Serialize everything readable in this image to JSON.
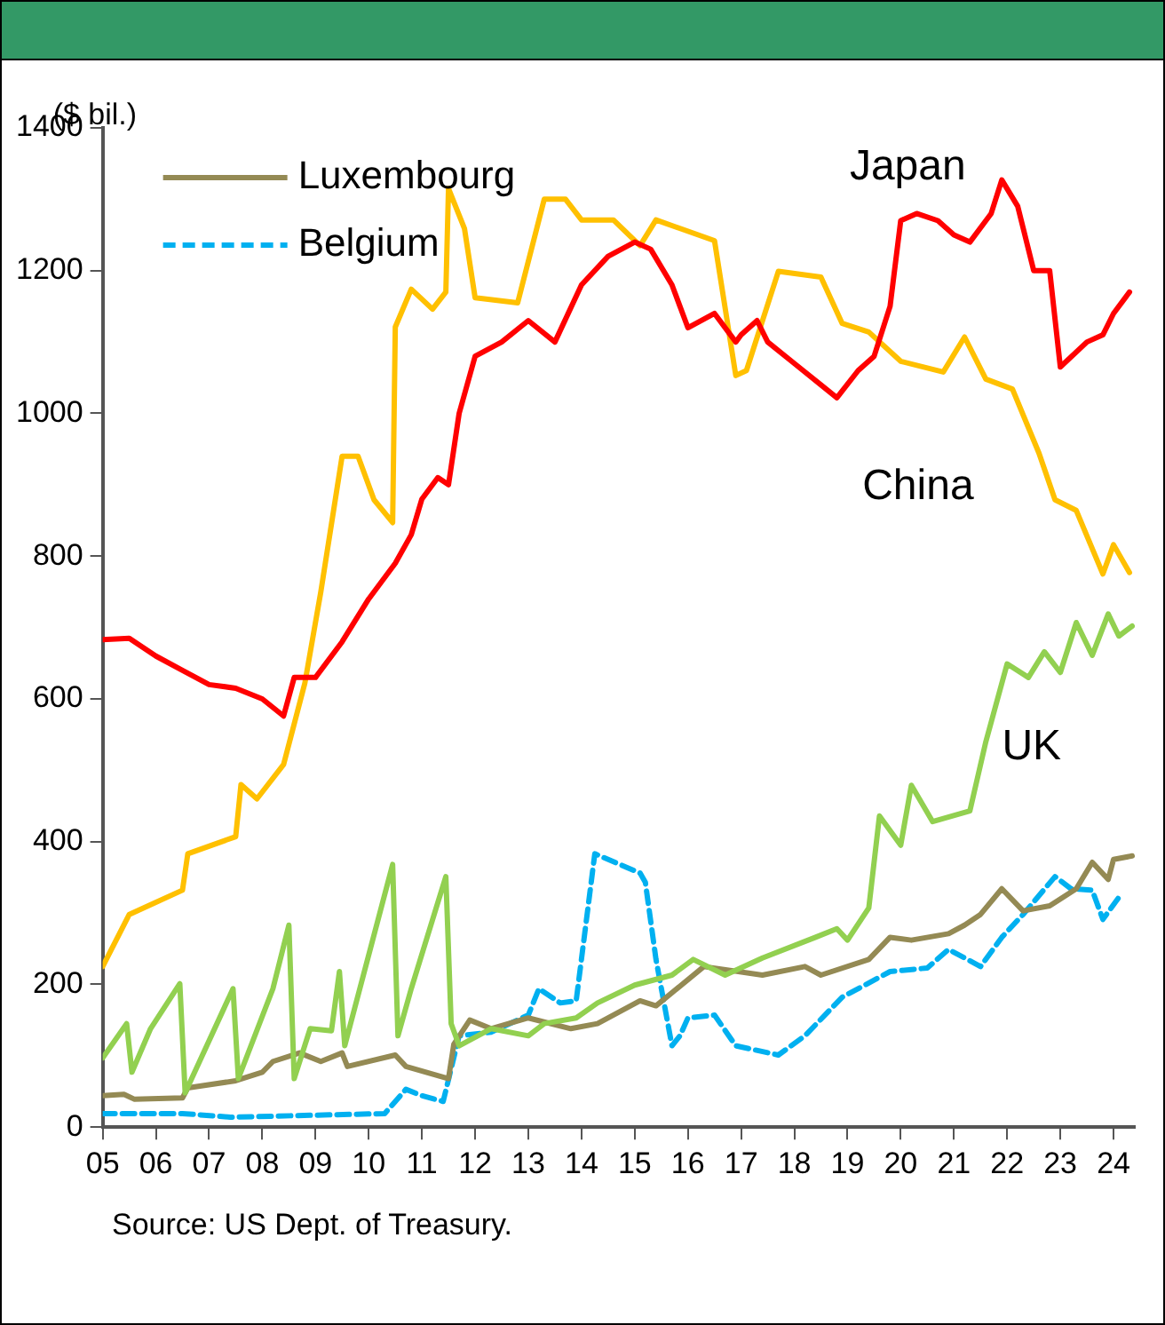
{
  "chart_data": {
    "type": "line",
    "ylabel": "($ bil.)",
    "xlim": [
      2005,
      2024.4
    ],
    "ylim": [
      0,
      1400
    ],
    "xticks": [
      {
        "value": 2005,
        "label": "05"
      },
      {
        "value": 2006,
        "label": "06"
      },
      {
        "value": 2007,
        "label": "07"
      },
      {
        "value": 2008,
        "label": "08"
      },
      {
        "value": 2009,
        "label": "09"
      },
      {
        "value": 2010,
        "label": "10"
      },
      {
        "value": 2011,
        "label": "11"
      },
      {
        "value": 2012,
        "label": "12"
      },
      {
        "value": 2013,
        "label": "13"
      },
      {
        "value": 2014,
        "label": "14"
      },
      {
        "value": 2015,
        "label": "15"
      },
      {
        "value": 2016,
        "label": "16"
      },
      {
        "value": 2017,
        "label": "17"
      },
      {
        "value": 2018,
        "label": "18"
      },
      {
        "value": 2019,
        "label": "19"
      },
      {
        "value": 2020,
        "label": "20"
      },
      {
        "value": 2021,
        "label": "21"
      },
      {
        "value": 2022,
        "label": "22"
      },
      {
        "value": 2023,
        "label": "23"
      },
      {
        "value": 2024,
        "label": "24"
      }
    ],
    "yticks": [
      0,
      200,
      400,
      600,
      800,
      1000,
      1200,
      1400
    ],
    "legend": "top left",
    "line_style": "solid",
    "marker": "none",
    "series": [
      {
        "name": "Japan",
        "color": "#ff0000",
        "x": [
          2005,
          2005.5,
          2006,
          2006.5,
          2007,
          2007.5,
          2008,
          2008.4,
          2008.6,
          2009,
          2009.5,
          2010,
          2010.5,
          2010.8,
          2011,
          2011.3,
          2011.5,
          2011.7,
          2012,
          2012.5,
          2013,
          2013.5,
          2014,
          2014.5,
          2015,
          2015.3,
          2015.7,
          2016,
          2016.5,
          2016.9,
          2017,
          2017.3,
          2017.5,
          2018,
          2018.5,
          2018.8,
          2019.2,
          2019.5,
          2019.8,
          2020.0,
          2020.3,
          2020.7,
          2021,
          2021.3,
          2021.7,
          2021.9,
          2022.2,
          2022.5,
          2022.8,
          2023,
          2023.5,
          2023.8,
          2024,
          2024.3
        ],
        "values": [
          683,
          685,
          660,
          640,
          620,
          615,
          600,
          576,
          630,
          630,
          680,
          740,
          790,
          830,
          880,
          910,
          900,
          1000,
          1080,
          1100,
          1130,
          1100,
          1180,
          1220,
          1240,
          1230,
          1180,
          1120,
          1140,
          1100,
          1110,
          1130,
          1100,
          1070,
          1040,
          1022,
          1060,
          1080,
          1150,
          1270,
          1280,
          1270,
          1250,
          1240,
          1280,
          1327,
          1290,
          1200,
          1200,
          1065,
          1100,
          1110,
          1140,
          1170
        ]
      },
      {
        "name": "China",
        "color": "#ffc000",
        "x": [
          2005,
          2005.5,
          2006.5,
          2006.6,
          2007.5,
          2007.6,
          2007.9,
          2008.4,
          2008.8,
          2009.1,
          2009.5,
          2009.8,
          2010.1,
          2010.45,
          2010.5,
          2010.8,
          2011.2,
          2011.45,
          2011.5,
          2011.8,
          2012.0,
          2012.8,
          2013.3,
          2013.7,
          2014.0,
          2014.6,
          2015.1,
          2015.4,
          2016.5,
          2016.9,
          2017.1,
          2017.7,
          2018.5,
          2018.9,
          2019.4,
          2020.0,
          2020.8,
          2021.2,
          2021.6,
          2022.1,
          2022.6,
          2022.9,
          2023.3,
          2023.8,
          2024.0,
          2024.3
        ],
        "values": [
          225,
          298,
          332,
          383,
          407,
          480,
          460,
          508,
          622,
          750,
          940,
          940,
          879,
          847,
          1121,
          1174,
          1146,
          1170,
          1315,
          1259,
          1162,
          1155,
          1300,
          1300,
          1271,
          1271,
          1235,
          1271,
          1242,
          1053,
          1060,
          1199,
          1191,
          1126,
          1114,
          1073,
          1058,
          1107,
          1048,
          1034,
          944,
          879,
          864,
          775,
          816,
          777
        ]
      },
      {
        "name": "UK",
        "color": "#92d050",
        "x": [
          2005,
          2005.45,
          2005.55,
          2005.9,
          2006.45,
          2006.55,
          2007.45,
          2007.55,
          2008.2,
          2008.5,
          2008.6,
          2008.9,
          2009.3,
          2009.45,
          2009.55,
          2010.45,
          2010.55,
          2010.8,
          2011.45,
          2011.55,
          2011.7,
          2012.3,
          2013.0,
          2013.3,
          2013.9,
          2014.3,
          2015.0,
          2015.7,
          2016.1,
          2016.7,
          2017.4,
          2018.4,
          2018.8,
          2019.0,
          2019.4,
          2019.6,
          2020.0,
          2020.2,
          2020.6,
          2021.3,
          2021.6,
          2022.0,
          2022.4,
          2022.7,
          2023.0,
          2023.3,
          2023.6,
          2023.9,
          2024.1,
          2024.35
        ],
        "values": [
          97,
          145,
          77,
          138,
          201,
          48,
          194,
          68,
          194,
          283,
          68,
          138,
          135,
          218,
          114,
          368,
          128,
          194,
          351,
          145,
          114,
          138,
          128,
          145,
          153,
          174,
          199,
          213,
          235,
          213,
          237,
          266,
          278,
          262,
          307,
          436,
          395,
          479,
          428,
          443,
          540,
          649,
          630,
          666,
          637,
          707,
          661,
          719,
          688,
          702
        ]
      },
      {
        "name": "Luxembourg",
        "color": "#948a54",
        "x": [
          2005,
          2005.4,
          2005.6,
          2006.5,
          2006.6,
          2007.5,
          2008.0,
          2008.2,
          2008.7,
          2009.1,
          2009.5,
          2009.6,
          2010.5,
          2010.7,
          2011.5,
          2011.6,
          2011.9,
          2012.3,
          2013.0,
          2013.8,
          2014.3,
          2015.1,
          2015.4,
          2016.3,
          2017.4,
          2018.2,
          2018.5,
          2019.4,
          2019.8,
          2020.2,
          2020.9,
          2021.2,
          2021.5,
          2021.9,
          2022.3,
          2022.8,
          2023.3,
          2023.6,
          2023.9,
          2024.0,
          2024.35
        ],
        "values": [
          44,
          46,
          39,
          41,
          55,
          65,
          77,
          92,
          104,
          92,
          104,
          85,
          101,
          85,
          68,
          116,
          150,
          138,
          153,
          138,
          145,
          177,
          170,
          225,
          213,
          225,
          213,
          235,
          266,
          262,
          271,
          283,
          298,
          334,
          303,
          310,
          334,
          371,
          347,
          375,
          380
        ]
      },
      {
        "name": "Belgium",
        "color": "#00b0f0",
        "line_style": "dashed",
        "x": [
          2005,
          2006.5,
          2007.4,
          2010.3,
          2010.7,
          2011.0,
          2011.4,
          2011.7,
          2012.3,
          2013.0,
          2013.2,
          2013.6,
          2013.9,
          2014.25,
          2015.1,
          2015.2,
          2015.4,
          2015.7,
          2015.85,
          2016.0,
          2016.5,
          2016.9,
          2017.7,
          2018.2,
          2018.9,
          2019.8,
          2020.5,
          2020.9,
          2021.5,
          2021.9,
          2022.3,
          2022.9,
          2023.2,
          2023.6,
          2023.8,
          2024.1
        ],
        "values": [
          19,
          19,
          14,
          19,
          53,
          44,
          36,
          128,
          133,
          157,
          194,
          174,
          177,
          383,
          356,
          343,
          235,
          114,
          128,
          153,
          157,
          114,
          101,
          128,
          182,
          218,
          223,
          249,
          225,
          266,
          298,
          351,
          334,
          332,
          291,
          322
        ]
      }
    ],
    "annotations": [
      "Source: US Dept. of Treasury."
    ]
  }
}
